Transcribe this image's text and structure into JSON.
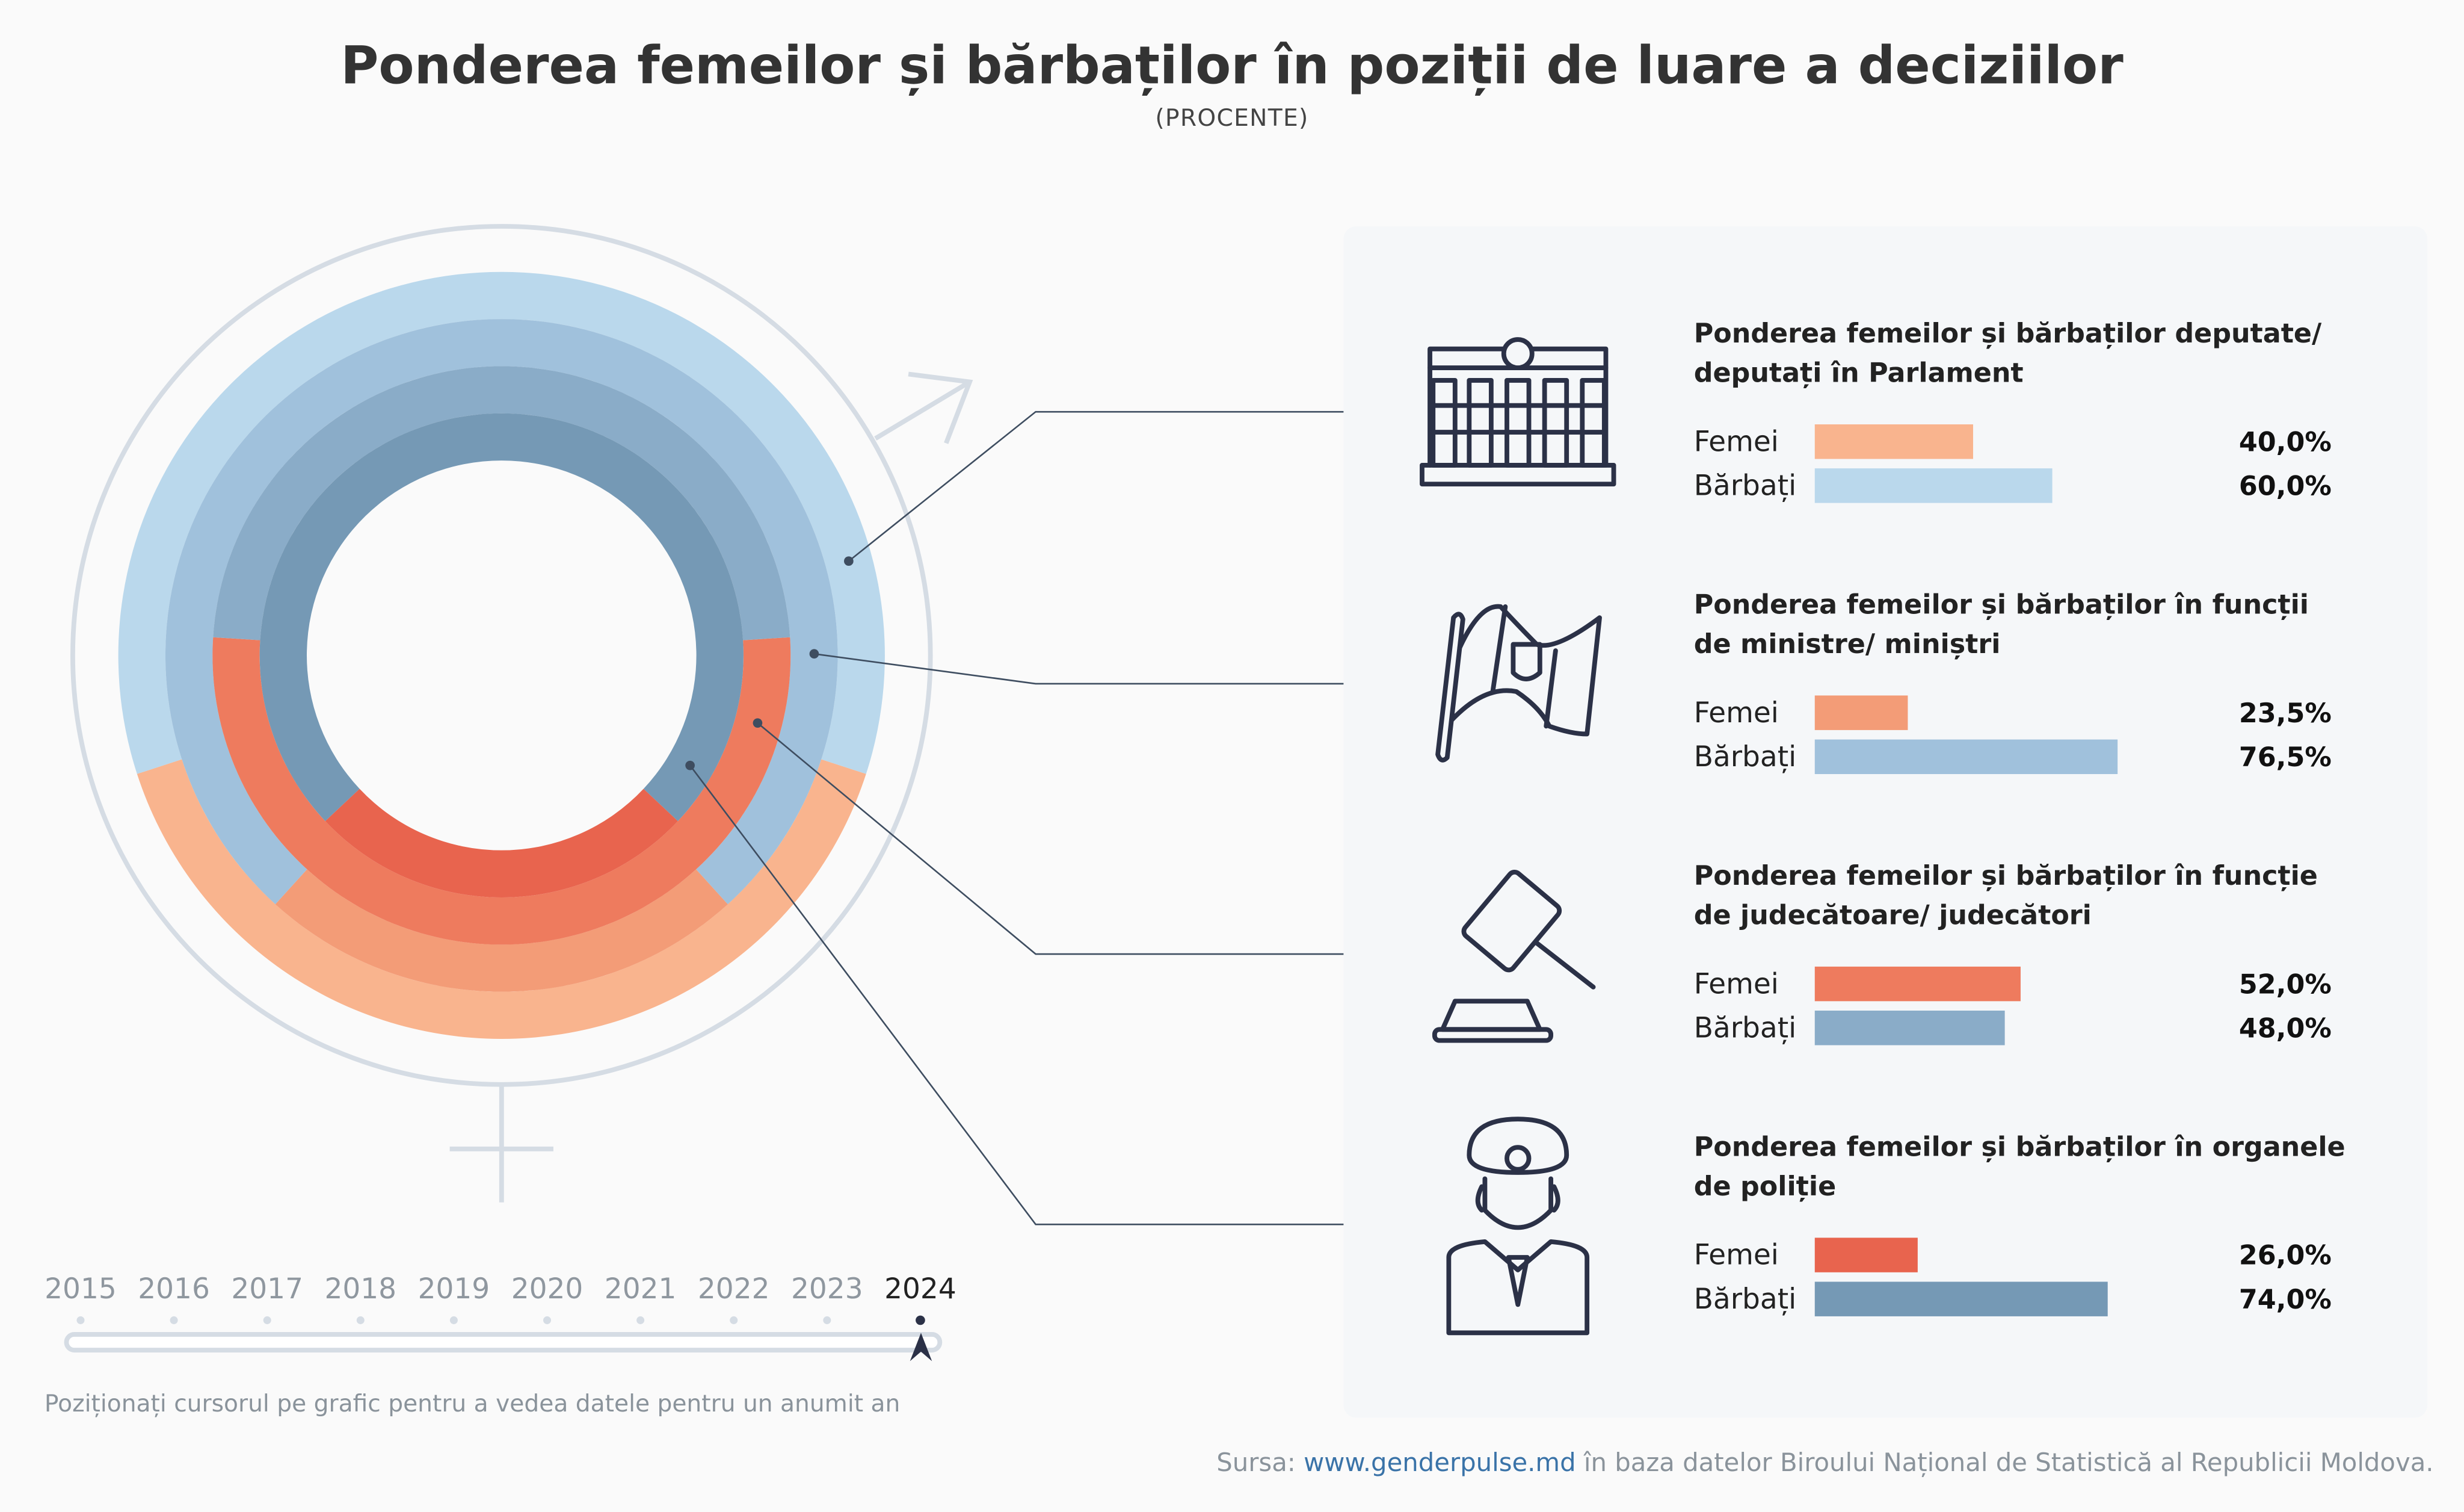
{
  "title": "Ponderea femeilor și bărbaților în poziții de luare a deciziilor",
  "subtitle": "(PROCENTE)",
  "chart_data": {
    "type": "radial-bar",
    "year": "2024",
    "series_labels": {
      "female": "Femei",
      "male": "Bărbați"
    },
    "categories": [
      {
        "title_line1": "Ponderea femeilor și bărbaților deputate/",
        "title_line2": "deputați în Parlament",
        "icon": "parliament-building-icon",
        "female": 40.0,
        "male": 60.0,
        "female_label": "40,0%",
        "male_label": "60,0%",
        "female_color": "#F9B48E",
        "male_color": "#BAD8EC"
      },
      {
        "title_line1": "Ponderea femeilor și bărbaților în funcții",
        "title_line2": "de ministre/ miniștri",
        "icon": "flag-icon",
        "female": 23.5,
        "male": 76.5,
        "female_label": "23,5%",
        "male_label": "76,5%",
        "female_color": "#F39C77",
        "male_color": "#A0C1DC"
      },
      {
        "title_line1": "Ponderea femeilor și bărbaților în funcție",
        "title_line2": "de judecătoare/ judecători",
        "icon": "gavel-icon",
        "female": 52.0,
        "male": 48.0,
        "female_label": "52,0%",
        "male_label": "48,0%",
        "female_color": "#EE7B5E",
        "male_color": "#8AACC8"
      },
      {
        "title_line1": "Ponderea femeilor și bărbaților în organele",
        "title_line2": "de poliție",
        "icon": "police-officer-icon",
        "female": 26.0,
        "male": 74.0,
        "female_label": "26,0%",
        "male_label": "74,0%",
        "female_color": "#E8644E",
        "male_color": "#7599B5"
      }
    ]
  },
  "timeline": {
    "years": [
      "2015",
      "2016",
      "2017",
      "2018",
      "2019",
      "2020",
      "2021",
      "2022",
      "2023",
      "2024"
    ],
    "selected": "2024",
    "hint": "Poziționați cursorul pe grafic pentru a vedea datele pentru un anumit an"
  },
  "source": {
    "prefix": "Sursa: ",
    "link": "www.genderpulse.md",
    "suffix": " în baza datelor Biroului Național de Statistică al Republicii Moldova."
  }
}
